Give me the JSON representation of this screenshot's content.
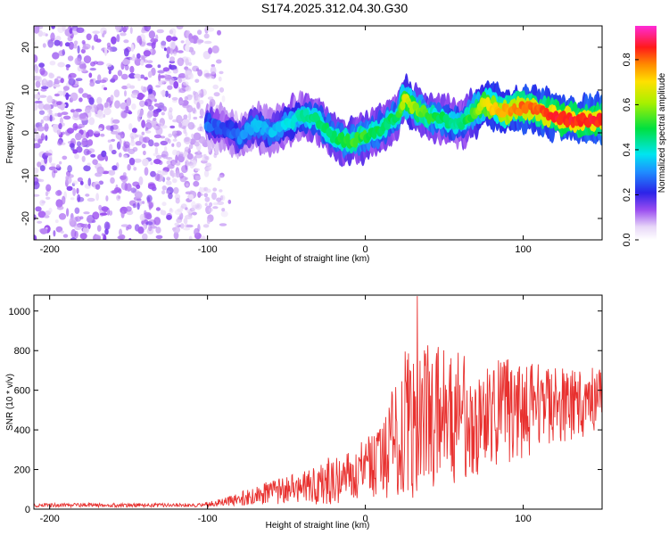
{
  "title": "S174.2025.312.04.30.G30",
  "colors": {
    "line": "#e8312f",
    "axis": "#000000",
    "background": "#ffffff"
  },
  "chart_data": [
    {
      "type": "heatmap",
      "name": "spectrogram",
      "xlabel": "Height of straight line (km)",
      "ylabel": "Frequency (Hz)",
      "xlim": [
        -210,
        150
      ],
      "ylim": [
        -25,
        25
      ],
      "xticks": [
        -200,
        -100,
        0,
        100
      ],
      "yticks": [
        -20,
        -10,
        0,
        10,
        20
      ],
      "colorbar": {
        "label": "Normalized spectral amplitude",
        "range": [
          0,
          0.95
        ],
        "ticks": [
          0.0,
          0.2,
          0.4,
          0.6,
          0.8
        ],
        "tick_labels": [
          "0.0",
          "0.2",
          "0.4",
          "0.6",
          "0.8"
        ],
        "colormap": "rainbow (white-purple-blue-cyan-green-yellow-red-magenta)"
      },
      "noise_region_x": [
        -210,
        -110
      ],
      "ridge": {
        "x": [
          -100,
          -90,
          -80,
          -70,
          -60,
          -50,
          -40,
          -30,
          -20,
          -10,
          0,
          10,
          20,
          25,
          30,
          40,
          50,
          60,
          70,
          75,
          80,
          90,
          100,
          110,
          120,
          130,
          140,
          150
        ],
        "frequency_hz": [
          2,
          1,
          -1,
          2,
          0,
          2,
          4,
          3,
          -1,
          -2,
          -1,
          1,
          4,
          8,
          6,
          4,
          3,
          2,
          5,
          7,
          6,
          5,
          6,
          5,
          4,
          3,
          3,
          3
        ],
        "peak_amplitude": [
          0.3,
          0.25,
          0.3,
          0.35,
          0.35,
          0.4,
          0.45,
          0.5,
          0.5,
          0.55,
          0.55,
          0.5,
          0.5,
          0.7,
          0.65,
          0.55,
          0.5,
          0.45,
          0.6,
          0.7,
          0.75,
          0.8,
          0.85,
          0.85,
          0.9,
          0.9,
          0.9,
          0.9
        ]
      }
    },
    {
      "type": "line",
      "name": "snr",
      "xlabel": "Height of straight line (km)",
      "ylabel": "SNR (10 * v/v)",
      "xlim": [
        -210,
        150
      ],
      "ylim": [
        0,
        1080
      ],
      "xticks": [
        -200,
        -100,
        0,
        100
      ],
      "yticks": [
        0,
        200,
        400,
        600,
        800,
        1000
      ],
      "envelope": {
        "x": [
          -210,
          -150,
          -110,
          -100,
          -90,
          -80,
          -70,
          -60,
          -50,
          -40,
          -30,
          -20,
          -10,
          0,
          10,
          15,
          20,
          25,
          30,
          35,
          40,
          50,
          60,
          70,
          80,
          90,
          100,
          110,
          120,
          130,
          140,
          150
        ],
        "mean": [
          20,
          20,
          20,
          25,
          35,
          50,
          70,
          85,
          95,
          110,
          130,
          150,
          170,
          200,
          250,
          300,
          380,
          430,
          470,
          480,
          480,
          470,
          460,
          470,
          480,
          490,
          500,
          510,
          520,
          530,
          540,
          545
        ],
        "spread": [
          10,
          10,
          10,
          12,
          20,
          35,
          50,
          60,
          70,
          80,
          110,
          130,
          150,
          170,
          200,
          250,
          320,
          380,
          420,
          400,
          380,
          350,
          330,
          320,
          300,
          280,
          250,
          220,
          200,
          190,
          180,
          170
        ]
      },
      "peak": {
        "x": 33,
        "y": 1075
      }
    }
  ]
}
